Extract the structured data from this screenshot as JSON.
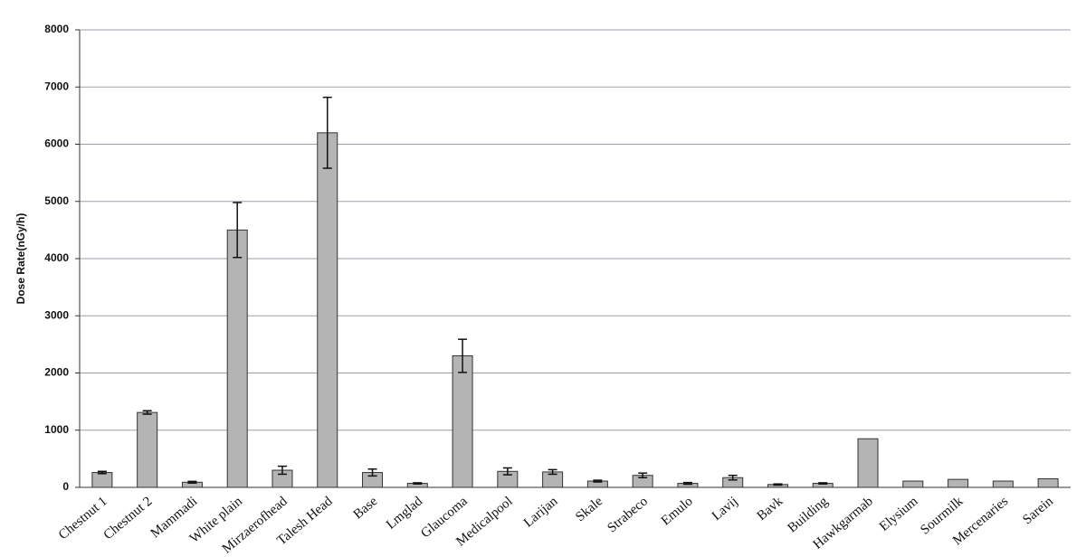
{
  "chart_data": {
    "type": "bar",
    "y_label": "Dose Rate(nGy/h)",
    "categories": [
      "Chestnut 1",
      "Chestnut 2",
      "Mammadi",
      "White plain",
      "Mirzaerofhead",
      "Talesh Head",
      "Base",
      "Lmglad",
      "Glaucoma",
      "Medicalpool",
      "Larijan",
      "Skale",
      "Strabeco",
      "Emulo",
      "Lavij",
      "Bavk",
      "Building",
      "Hawkgarmab",
      "Elysium",
      "Sourmilk",
      "Mercenaries",
      "Sarein"
    ],
    "values": [
      260,
      1310,
      90,
      4500,
      300,
      6200,
      260,
      70,
      2300,
      280,
      270,
      110,
      210,
      70,
      170,
      50,
      70,
      850,
      110,
      140,
      110,
      150
    ],
    "errors": [
      20,
      30,
      15,
      480,
      70,
      620,
      60,
      10,
      290,
      60,
      40,
      15,
      40,
      15,
      40,
      10,
      10,
      null,
      null,
      null,
      null,
      null
    ],
    "color": "#b4b4b4",
    "ylim": [
      0,
      8000
    ],
    "yticks": [
      0,
      1000,
      2000,
      3000,
      4000,
      5000,
      6000,
      7000,
      8000
    ],
    "grid": true
  }
}
